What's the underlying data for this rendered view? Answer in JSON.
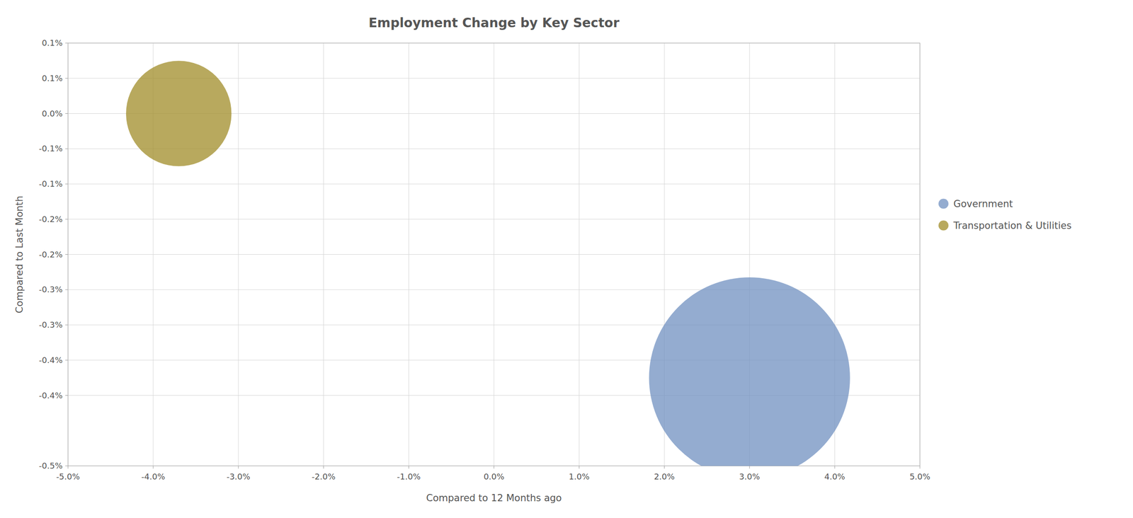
{
  "chart_data": {
    "type": "scatter",
    "title": "Employment Change by Key Sector",
    "x_label": "Compared to 12 Months ago",
    "y_label": "Compared to Last Month",
    "xlim": [
      -0.05,
      0.05
    ],
    "ylim": [
      -0.005,
      0.001
    ],
    "xticks": [
      {
        "value": -0.05,
        "label": "-5.0%"
      },
      {
        "value": -0.04,
        "label": "-4.0%"
      },
      {
        "value": -0.03,
        "label": "-3.0%"
      },
      {
        "value": -0.02,
        "label": "-2.0%"
      },
      {
        "value": -0.01,
        "label": "-1.0%"
      },
      {
        "value": 0.0,
        "label": "0.0%"
      },
      {
        "value": 0.01,
        "label": "1.0%"
      },
      {
        "value": 0.02,
        "label": "2.0%"
      },
      {
        "value": 0.03,
        "label": "3.0%"
      },
      {
        "value": 0.04,
        "label": "4.0%"
      },
      {
        "value": 0.05,
        "label": "5.0%"
      }
    ],
    "yticks": [
      {
        "value": 0.001,
        "label": "0.1%"
      },
      {
        "value": 0.0005,
        "label": "0.1%"
      },
      {
        "value": 0.0,
        "label": "0.0%"
      },
      {
        "value": -0.0005,
        "label": "-0.1%"
      },
      {
        "value": -0.001,
        "label": "-0.1%"
      },
      {
        "value": -0.0015,
        "label": "-0.2%"
      },
      {
        "value": -0.002,
        "label": "-0.2%"
      },
      {
        "value": -0.0025,
        "label": "-0.3%"
      },
      {
        "value": -0.003,
        "label": "-0.3%"
      },
      {
        "value": -0.0035,
        "label": "-0.4%"
      },
      {
        "value": -0.004,
        "label": "-0.4%"
      },
      {
        "value": -0.005,
        "label": "-0.5%"
      }
    ],
    "grid": true,
    "legend": "right",
    "series": [
      {
        "name": "Government",
        "color": "#7090c0",
        "x": [
          0.03
        ],
        "values": [
          -0.00375
        ],
        "sizes": [
          80000
        ]
      },
      {
        "name": "Transportation & Utilities",
        "color": "#a08c28",
        "x": [
          -0.037
        ],
        "values": [
          0.0
        ],
        "sizes": [
          22000
        ]
      }
    ]
  }
}
